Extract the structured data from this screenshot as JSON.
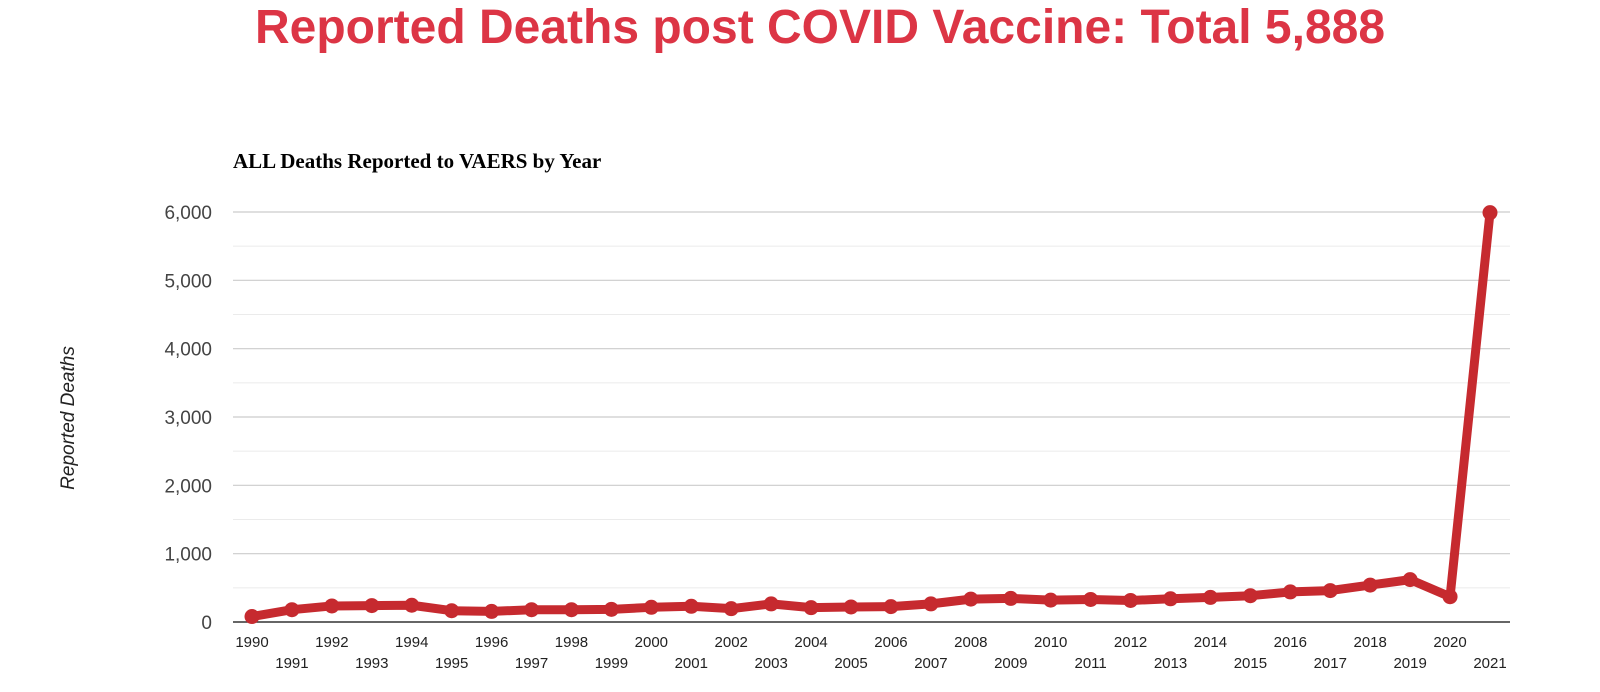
{
  "header": {
    "title": "Reported Deaths post COVID Vaccine: Total 5,888"
  },
  "colors": {
    "title": "#dc3545",
    "line": "#c62a2f",
    "gridline": "#cccccc",
    "minor_gridline": "#ebebeb",
    "axis": "#333333"
  },
  "chart_data": {
    "type": "line",
    "title": "ALL Deaths Reported to VAERS by Year",
    "xlabel": "",
    "ylabel": "Reported Deaths",
    "ylim": [
      0,
      6000
    ],
    "yticks": [
      0,
      1000,
      2000,
      3000,
      4000,
      5000,
      6000
    ],
    "ytick_labels": [
      "0",
      "1,000",
      "2,000",
      "3,000",
      "4,000",
      "5,000",
      "6,000"
    ],
    "grid": true,
    "legend": "none",
    "categories": [
      "1990",
      "1991",
      "1992",
      "1993",
      "1994",
      "1995",
      "1996",
      "1997",
      "1998",
      "1999",
      "2000",
      "2001",
      "2002",
      "2003",
      "2004",
      "2005",
      "2006",
      "2007",
      "2008",
      "2009",
      "2010",
      "2011",
      "2012",
      "2013",
      "2014",
      "2015",
      "2016",
      "2017",
      "2018",
      "2019",
      "2020",
      "2021"
    ],
    "series": [
      {
        "values": [
          80,
          180,
          235,
          240,
          245,
          165,
          155,
          180,
          180,
          185,
          215,
          230,
          195,
          265,
          210,
          220,
          225,
          265,
          335,
          345,
          320,
          330,
          315,
          340,
          360,
          385,
          440,
          460,
          540,
          620,
          370,
          5990
        ]
      }
    ]
  }
}
